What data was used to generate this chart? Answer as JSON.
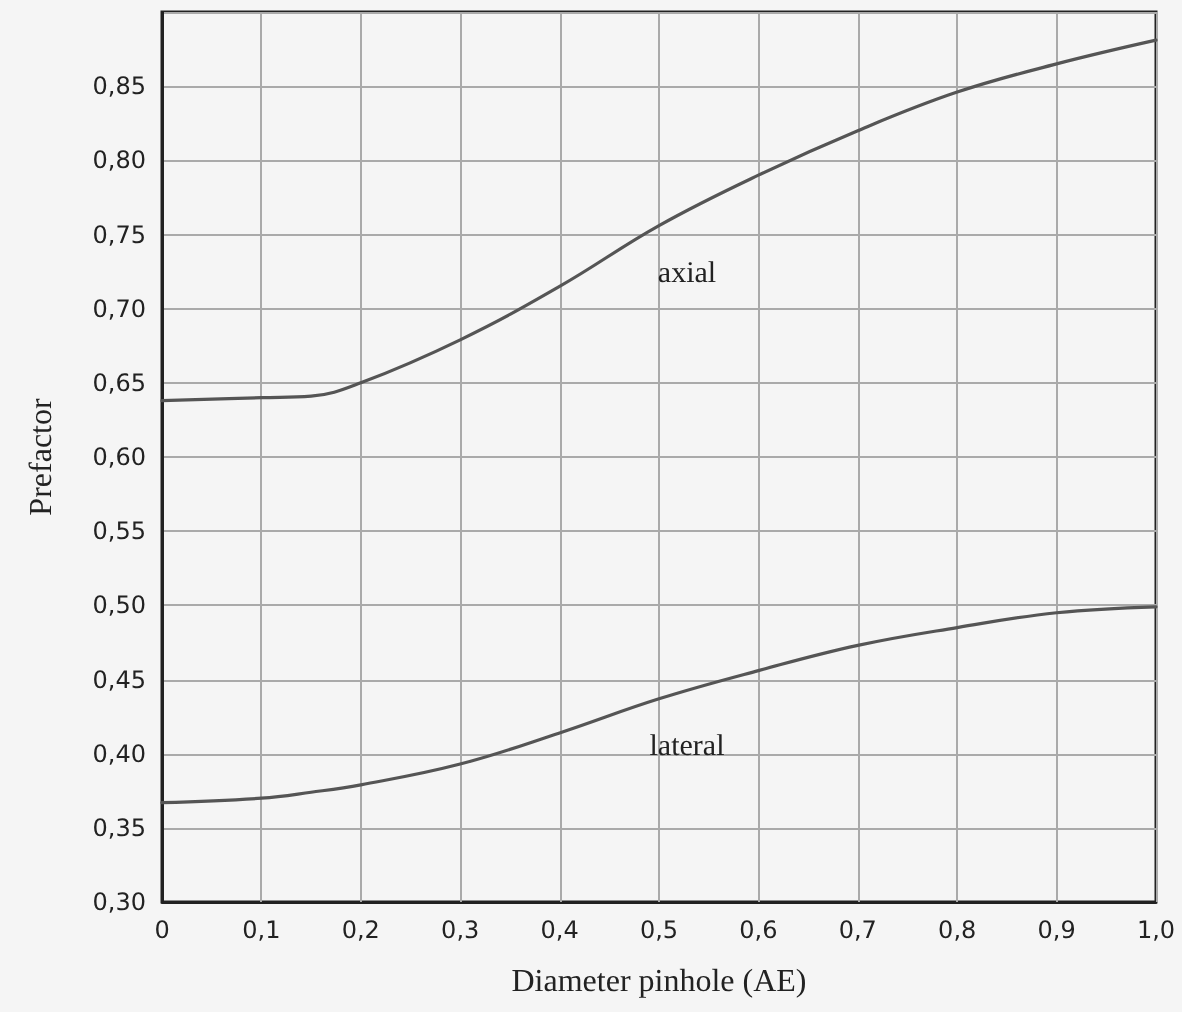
{
  "chart_data": {
    "type": "line",
    "xlabel": "Diameter pinhole (AE)",
    "ylabel": "Prefactor",
    "x": [
      0,
      0.1,
      0.15,
      0.2,
      0.3,
      0.4,
      0.5,
      0.6,
      0.7,
      0.8,
      0.9,
      1.0
    ],
    "series": [
      {
        "name": "axial",
        "color": "#555555",
        "values": [
          0.638,
          0.64,
          0.641,
          0.65,
          0.679,
          0.715,
          0.756,
          0.79,
          0.82,
          0.846,
          0.865,
          0.881
        ]
      },
      {
        "name": "lateral",
        "color": "#555555",
        "values": [
          0.367,
          0.37,
          0.374,
          0.379,
          0.393,
          0.414,
          0.437,
          0.456,
          0.473,
          0.485,
          0.495,
          0.499
        ]
      }
    ],
    "xlim": [
      0,
      1
    ],
    "xticks": [
      {
        "value": 0,
        "label": "0"
      },
      {
        "value": 0.1,
        "label": "0,1"
      },
      {
        "value": 0.2,
        "label": "0,2"
      },
      {
        "value": 0.3,
        "label": "0,3"
      },
      {
        "value": 0.4,
        "label": "0,4"
      },
      {
        "value": 0.5,
        "label": "0,5"
      },
      {
        "value": 0.6,
        "label": "0,6"
      },
      {
        "value": 0.7,
        "label": "0,7"
      },
      {
        "value": 0.8,
        "label": "0,8"
      },
      {
        "value": 0.9,
        "label": "0,9"
      },
      {
        "value": 1,
        "label": "1,0"
      }
    ],
    "ylim": [
      0.3,
      0.9
    ],
    "yticks": [
      {
        "value": 0.3,
        "label": "0,30"
      },
      {
        "value": 0.35,
        "label": "0,35"
      },
      {
        "value": 0.4,
        "label": "0,40"
      },
      {
        "value": 0.45,
        "label": "0,45"
      },
      {
        "value": 0.5,
        "label": "0,50"
      },
      {
        "value": 0.55,
        "label": "0,55"
      },
      {
        "value": 0.6,
        "label": "0,60"
      },
      {
        "value": 0.65,
        "label": "0,65"
      },
      {
        "value": 0.7,
        "label": "0,70"
      },
      {
        "value": 0.75,
        "label": "0,75"
      },
      {
        "value": 0.8,
        "label": "0,80"
      },
      {
        "value": 0.85,
        "label": "0,85"
      },
      {
        "value": 0.9,
        "label": null
      }
    ],
    "grid": true,
    "legend": false,
    "marker": "none",
    "line_style": "solid"
  }
}
